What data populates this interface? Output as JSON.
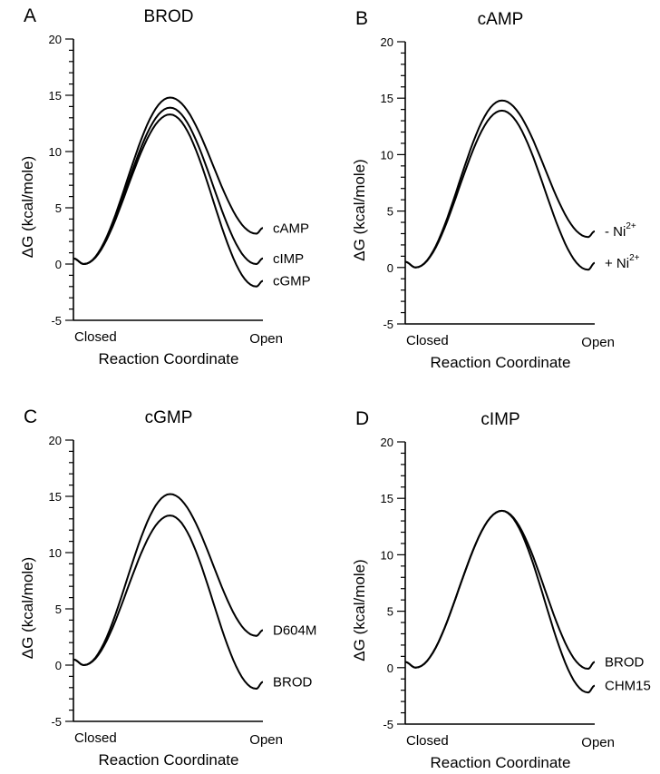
{
  "chart_data": [
    {
      "type": "line",
      "panel": "A",
      "title": "BROD",
      "xlabel": "Reaction Coordinate",
      "ylabel": "ΔG (kcal/mole)",
      "x_tick_labels": [
        "Closed",
        "Open"
      ],
      "ylim": [
        -5,
        20
      ],
      "y_ticks": [
        -5,
        0,
        5,
        10,
        15,
        20
      ],
      "grid": false,
      "series": [
        {
          "name": "cAMP",
          "start": 0.5,
          "closed_min": 0,
          "peak": 14.8,
          "open_min": 2.7,
          "end": 3.2
        },
        {
          "name": "cIMP",
          "start": 0.5,
          "closed_min": 0,
          "peak": 13.9,
          "open_min": 0.0,
          "end": 0.5
        },
        {
          "name": "cGMP",
          "start": 0.5,
          "closed_min": 0,
          "peak": 13.3,
          "open_min": -2.0,
          "end": -1.5
        }
      ]
    },
    {
      "type": "line",
      "panel": "B",
      "title": "cAMP",
      "xlabel": "Reaction Coordinate",
      "ylabel": "ΔG (kcal/mole)",
      "x_tick_labels": [
        "Closed",
        "Open"
      ],
      "ylim": [
        -5,
        20
      ],
      "y_ticks": [
        -5,
        0,
        5,
        10,
        15,
        20
      ],
      "grid": false,
      "series": [
        {
          "name": "- Ni",
          "sup": "2+",
          "start": 0.5,
          "closed_min": 0,
          "peak": 14.8,
          "open_min": 2.7,
          "end": 3.2
        },
        {
          "name": "+ Ni",
          "sup": "2+",
          "start": 0.5,
          "closed_min": 0,
          "peak": 13.9,
          "open_min": -0.2,
          "end": 0.4
        }
      ]
    },
    {
      "type": "line",
      "panel": "C",
      "title": "cGMP",
      "xlabel": "Reaction Coordinate",
      "ylabel": "ΔG (kcal/mole)",
      "x_tick_labels": [
        "Closed",
        "Open"
      ],
      "ylim": [
        -5,
        20
      ],
      "y_ticks": [
        -5,
        0,
        5,
        10,
        15,
        20
      ],
      "grid": false,
      "series": [
        {
          "name": "D604M",
          "start": 0.5,
          "closed_min": 0,
          "peak": 15.2,
          "open_min": 2.6,
          "end": 3.1
        },
        {
          "name": "BROD",
          "start": 0.5,
          "closed_min": 0,
          "peak": 13.3,
          "open_min": -2.1,
          "end": -1.5
        }
      ]
    },
    {
      "type": "line",
      "panel": "D",
      "title": "cIMP",
      "xlabel": "Reaction Coordinate",
      "ylabel": "ΔG (kcal/mole)",
      "x_tick_labels": [
        "Closed",
        "Open"
      ],
      "ylim": [
        -5,
        20
      ],
      "y_ticks": [
        -5,
        0,
        5,
        10,
        15,
        20
      ],
      "grid": false,
      "series": [
        {
          "name": "BROD",
          "start": 0.5,
          "closed_min": 0,
          "peak": 13.9,
          "open_min": -0.1,
          "end": 0.5
        },
        {
          "name": "CHM15",
          "start": 0.5,
          "closed_min": 0,
          "peak": 13.9,
          "open_min": -2.2,
          "end": -1.6
        }
      ]
    }
  ]
}
